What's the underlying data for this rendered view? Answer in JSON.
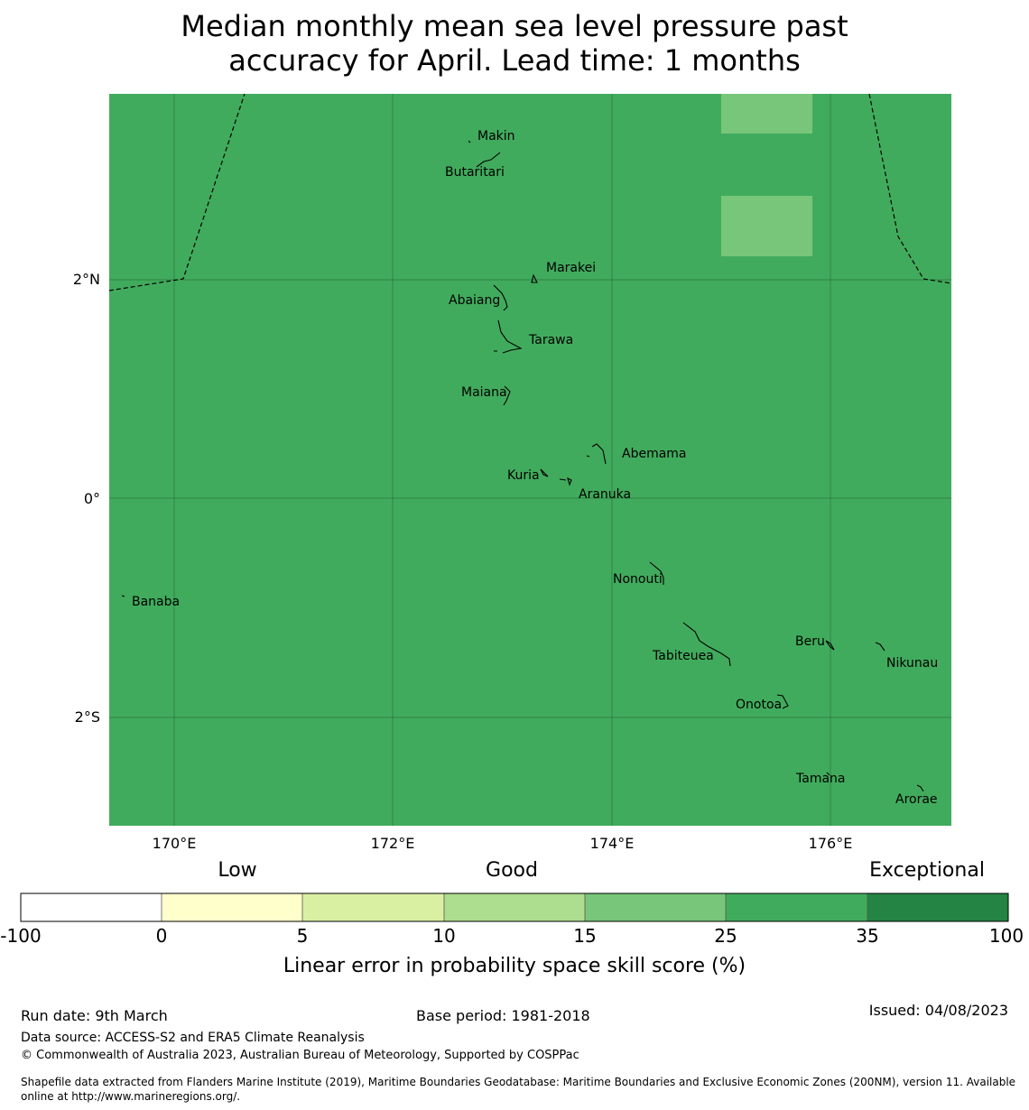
{
  "title": {
    "line1": "Median monthly mean sea level pressure past",
    "line2": "accuracy for April. Lead time: 1 months"
  },
  "map": {
    "background_color": "#41ab5d",
    "patch_color": "#78c679",
    "lat_labels": [
      "2°N",
      "0°",
      "2°S"
    ],
    "lon_labels": [
      "170°E",
      "172°E",
      "174°E",
      "176°E"
    ],
    "places": [
      "Makin",
      "Butaritari",
      "Marakei",
      "Abaiang",
      "Tarawa",
      "Maiana",
      "Abemama",
      "Kuria",
      "Aranuka",
      "Banaba",
      "Nonouti",
      "Beru",
      "Tabiteuea",
      "Nikunau",
      "Onotoa",
      "Tamana",
      "Arorae"
    ]
  },
  "legend": {
    "categories": [
      "Low",
      "Good",
      "Exceptional"
    ],
    "ticks": [
      "-100",
      "0",
      "5",
      "10",
      "15",
      "25",
      "35",
      "100"
    ],
    "colors": [
      "#ffffff",
      "#ffffcc",
      "#d9f0a3",
      "#addd8e",
      "#78c679",
      "#41ab5d",
      "#238443"
    ],
    "label": "Linear error in probability space skill score (%)"
  },
  "footer": {
    "run_date": "Run date: 9th March",
    "base_period": "Base period: 1981-2018",
    "issued": "Issued: 04/08/2023",
    "data_source": "Data source: ACCESS-S2 and ERA5 Climate Reanalysis",
    "copyright": "© Commonwealth of Australia 2023, Australian Bureau of Meteorology, Supported by COSPPac",
    "shapefile_line1": "Shapefile data extracted from Flanders Marine Institute (2019), Maritime Boundaries Geodatabase: Maritime Boundaries and Exclusive Economic Zones (200NM), version 11. Available",
    "shapefile_line2": "online at http://www.marineregions.org/."
  }
}
